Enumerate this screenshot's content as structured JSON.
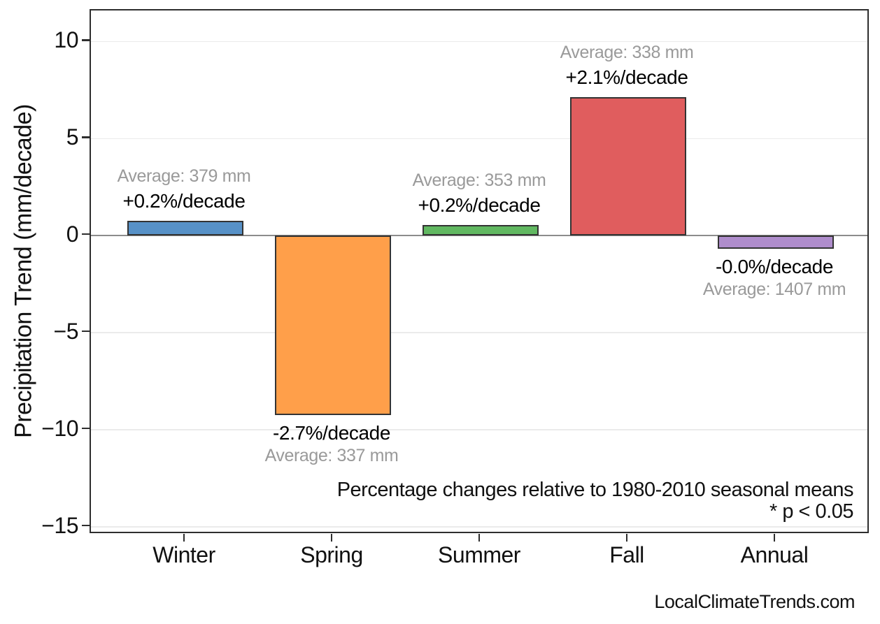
{
  "chart_data": {
    "type": "bar",
    "title": "",
    "xlabel": "",
    "ylabel": "Precipitation Trend (mm/decade)",
    "categories": [
      "Winter",
      "Spring",
      "Summer",
      "Fall",
      "Annual"
    ],
    "values": [
      0.76,
      -9.25,
      0.55,
      7.15,
      -0.68
    ],
    "values_unit": "mm/decade",
    "bar_labels": [
      {
        "average": "Average: 379 mm",
        "trend": "+0.2%/decade",
        "position": "above"
      },
      {
        "average": "Average: 337 mm",
        "trend": "-2.7%/decade",
        "position": "below"
      },
      {
        "average": "Average: 353 mm",
        "trend": "+0.2%/decade",
        "position": "above"
      },
      {
        "average": "Average: 338 mm",
        "trend": "+2.1%/decade",
        "position": "above"
      },
      {
        "average": "Average: 1407 mm",
        "trend": "-0.0%/decade",
        "position": "below"
      }
    ],
    "bar_colors": [
      "#5791c7",
      "#ff9f4a",
      "#61b861",
      "#e05d5e",
      "#af8dcc"
    ],
    "bar_edge_color": "#333333",
    "ylim": [
      -15.4,
      11.6
    ],
    "yticks": [
      {
        "value": 10,
        "label": "10"
      },
      {
        "value": 5,
        "label": "5"
      },
      {
        "value": 0,
        "label": "0"
      },
      {
        "value": -5,
        "label": "−5"
      },
      {
        "value": -10,
        "label": "−10"
      },
      {
        "value": -15,
        "label": "−15"
      }
    ],
    "grid": true,
    "grid_color": "#ebebeb",
    "zero_line": true,
    "zero_line_color": "#8c8c8c",
    "legend": "none",
    "annotations": {
      "note_line1": "Percentage changes relative to 1980-2010 seasonal means",
      "note_line2": "* p < 0.05"
    },
    "label_colors": {
      "trend": "#000000",
      "average": "#9a9a9a"
    }
  },
  "footer": {
    "watermark": "LocalClimateTrends.com"
  }
}
